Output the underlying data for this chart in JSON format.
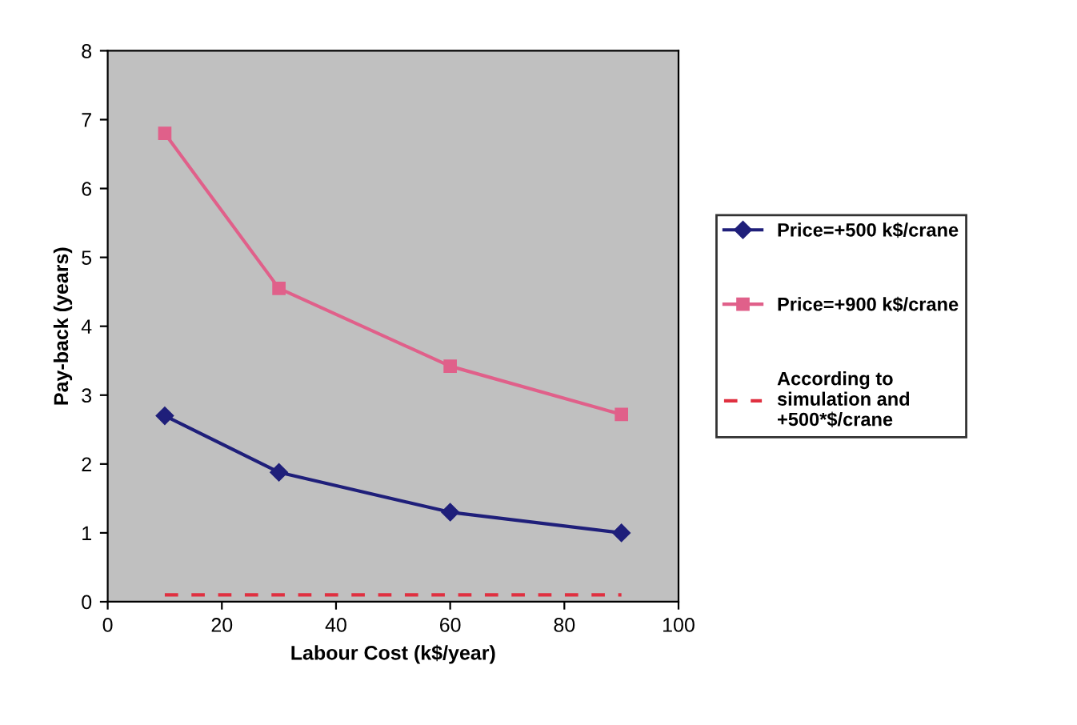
{
  "chart_data": {
    "type": "line",
    "xlabel": "Labour Cost (k$/year)",
    "ylabel": "Pay-back (years)",
    "x": [
      10,
      30,
      60,
      90
    ],
    "series": [
      {
        "name": "Price=+500 k$/crane",
        "color": "#1f1f7a",
        "values": [
          2.7,
          1.88,
          1.3,
          1.0
        ],
        "marker": "diamond",
        "line_style": "solid"
      },
      {
        "name": "Price=+900 k$/crane",
        "color": "#e0608a",
        "values": [
          6.8,
          4.55,
          3.42,
          2.72
        ],
        "marker": "square",
        "line_style": "solid"
      },
      {
        "name": "According to simulation and +500*$/crane",
        "color": "#e03040",
        "x": [
          10,
          90
        ],
        "values": [
          0.1,
          0.1
        ],
        "marker": "none",
        "line_style": "dashed"
      }
    ],
    "xlim": [
      0,
      100
    ],
    "xticks": [
      0,
      20,
      40,
      60,
      80,
      100
    ],
    "ylim": [
      0,
      8
    ],
    "yticks": [
      0,
      1,
      2,
      3,
      4,
      5,
      6,
      7,
      8
    ],
    "grid": false,
    "legend": "right"
  }
}
